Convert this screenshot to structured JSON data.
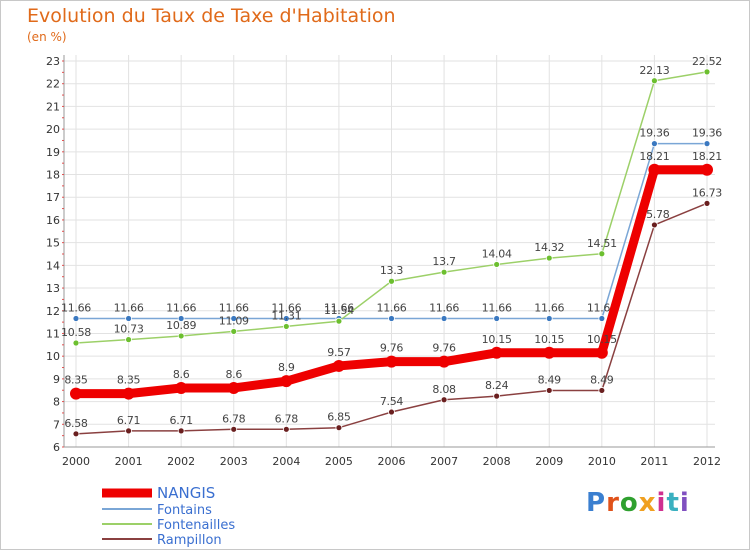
{
  "header": {
    "title": "Evolution du Taux de Taxe d'Habitation",
    "unit": "(en %)"
  },
  "logo": {
    "text": "Proxiti",
    "colors": [
      "#3a7fd0",
      "#e0521a",
      "#2fa02f",
      "#f0a020",
      "#d03090",
      "#3ab0c0",
      "#8050c0"
    ]
  },
  "chart_data": {
    "type": "line",
    "x": [
      "2000",
      "2001",
      "2002",
      "2003",
      "2004",
      "2005",
      "2006",
      "2007",
      "2008",
      "2009",
      "2010",
      "2011",
      "2012"
    ],
    "ylim": [
      6,
      23
    ],
    "yticks": [
      6,
      7,
      8,
      9,
      10,
      11,
      12,
      13,
      14,
      15,
      16,
      17,
      18,
      19,
      20,
      21,
      22,
      23
    ],
    "grid": true,
    "legend_position": "bottom-left",
    "series": [
      {
        "name": "Fontains",
        "color": "#7aa6d6",
        "marker": "#3a78c0",
        "values": [
          11.66,
          11.66,
          11.66,
          11.66,
          11.66,
          11.66,
          11.66,
          11.66,
          11.66,
          11.66,
          11.66,
          19.36,
          19.36
        ],
        "labels": [
          "11.66",
          "11.66",
          "11.66",
          "11.66",
          "11.66",
          "11.66",
          "11.66",
          "11.66",
          "11.66",
          "11.66",
          "11.66",
          "19.36",
          "19.36"
        ]
      },
      {
        "name": "Fontenailles",
        "color": "#9cd068",
        "marker": "#6cbf2f",
        "values": [
          10.58,
          10.73,
          10.89,
          11.09,
          11.31,
          11.54,
          13.3,
          13.7,
          14.04,
          14.32,
          14.51,
          22.13,
          22.52
        ],
        "labels": [
          "10.58",
          "10.73",
          "10.89",
          "11.09",
          "11.31",
          "11.54",
          "13.3",
          "13.7",
          "14.04",
          "14.32",
          "14.51",
          "22.13",
          "22.52"
        ]
      },
      {
        "name": "Rampillon",
        "color": "#8a4040",
        "marker": "#6a1f1f",
        "values": [
          6.58,
          6.71,
          6.71,
          6.78,
          6.78,
          6.85,
          7.54,
          8.08,
          8.24,
          8.49,
          8.49,
          15.78,
          16.73
        ],
        "labels": [
          "6.58",
          "6.71",
          "6.71",
          "6.78",
          "6.78",
          "6.85",
          "7.54",
          "8.08",
          "8.24",
          "8.49",
          "8.49",
          "15.78",
          "16.73"
        ]
      },
      {
        "name": "NANGIS",
        "color": "#ee0000",
        "marker": "#ee0000",
        "values": [
          8.35,
          8.35,
          8.6,
          8.6,
          8.9,
          9.57,
          9.76,
          9.76,
          10.15,
          10.15,
          10.15,
          18.21,
          18.21
        ],
        "labels": [
          "8.35",
          "8.35",
          "8.6",
          "8.6",
          "8.9",
          "9.57",
          "9.76",
          "9.76",
          "10.15",
          "10.15",
          "10.15",
          "18.21",
          "18.21"
        ]
      }
    ],
    "legend_order": [
      "NANGIS",
      "Fontains",
      "Fontenailles",
      "Rampillon"
    ]
  }
}
